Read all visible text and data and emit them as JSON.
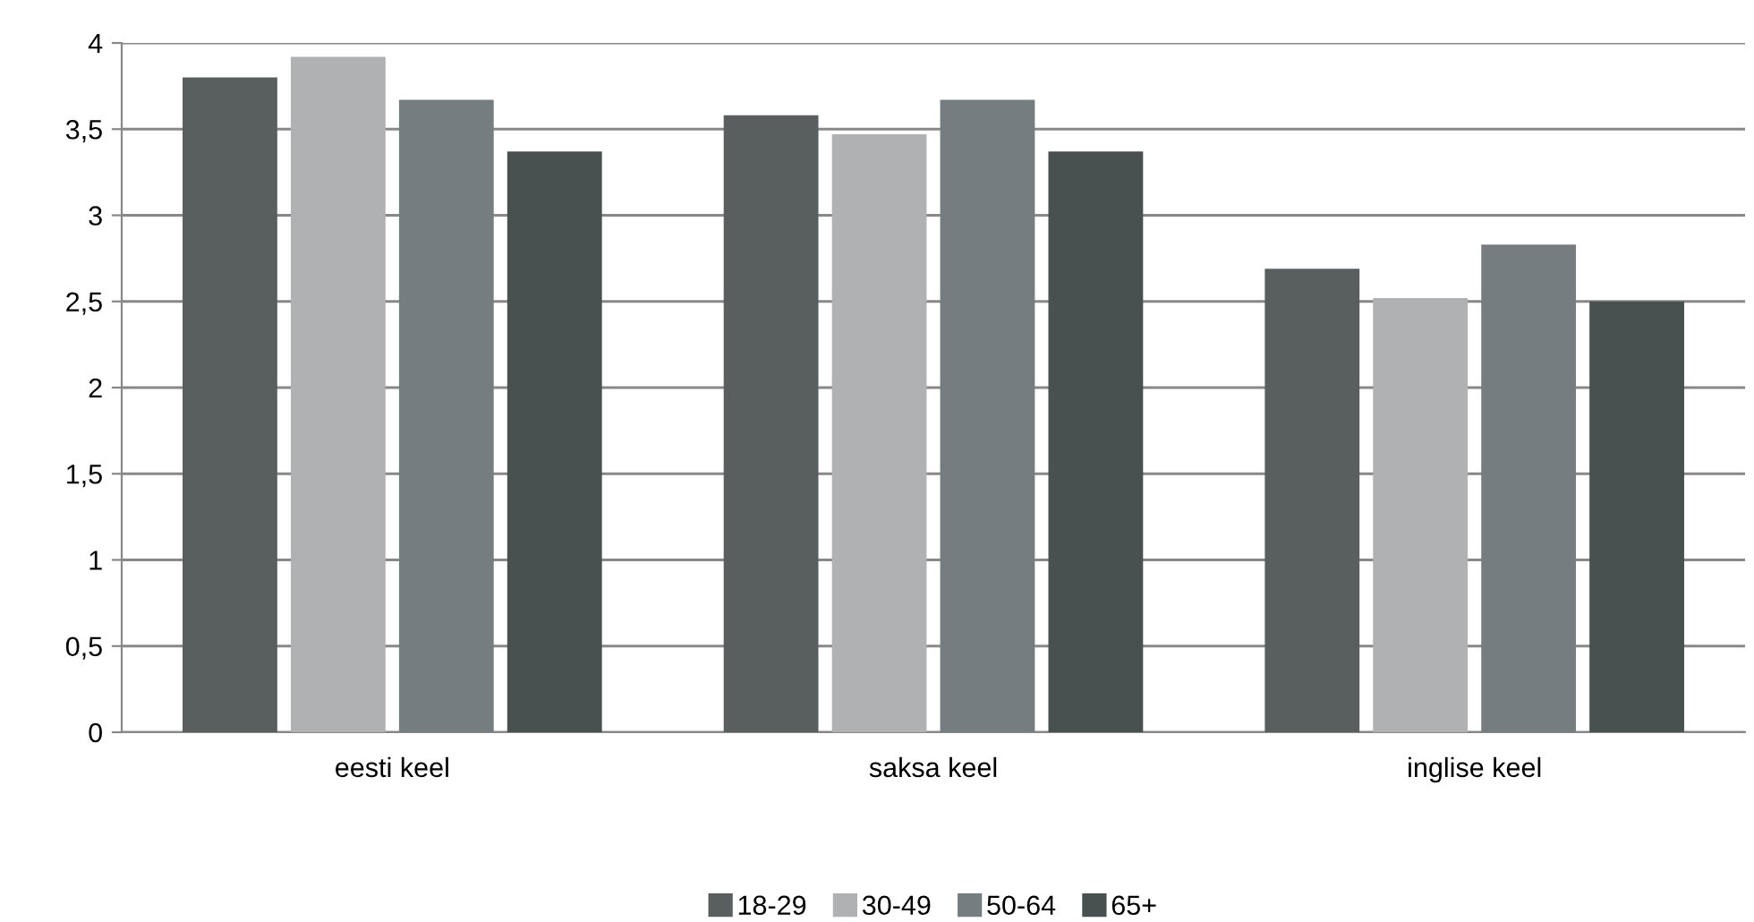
{
  "chart_data": {
    "type": "bar",
    "categories": [
      "eesti keel",
      "saksa keel",
      "inglise keel"
    ],
    "series": [
      {
        "name": "18-29",
        "color": "#595f5f",
        "values": [
          3.8,
          3.58,
          2.69
        ]
      },
      {
        "name": "30-49",
        "color": "#b0b1b3",
        "values": [
          3.92,
          3.47,
          2.52
        ]
      },
      {
        "name": "50-64",
        "color": "#767d80",
        "values": [
          3.67,
          3.67,
          2.83
        ]
      },
      {
        "name": "65+",
        "color": "#485050",
        "values": [
          3.37,
          3.37,
          2.5
        ]
      }
    ],
    "ylim": [
      0,
      4
    ],
    "yticks": [
      0,
      {
        "value": 0.5,
        "label": "0,5"
      },
      1,
      {
        "value": 1.5,
        "label": "1,5"
      },
      2,
      {
        "value": 2.5,
        "label": "2,5"
      },
      3,
      {
        "value": 3.5,
        "label": "3,5"
      },
      4
    ],
    "grid": "y",
    "legend": "bottom"
  }
}
